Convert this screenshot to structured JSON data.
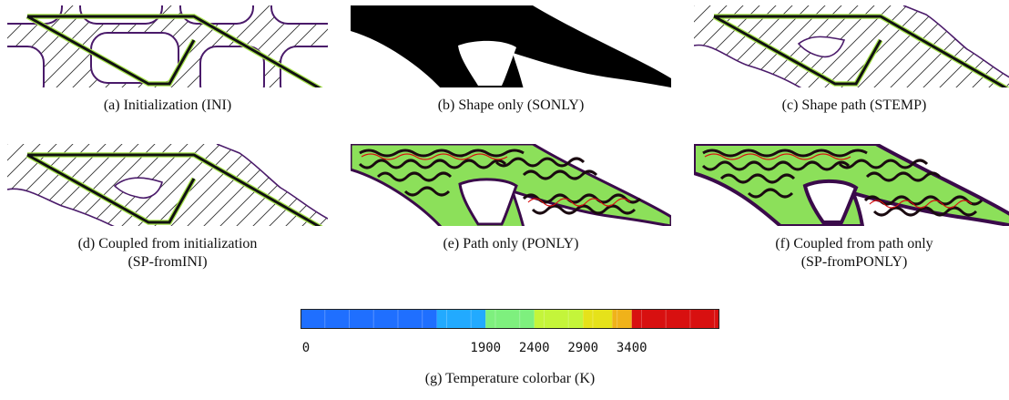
{
  "panels": [
    {
      "id": "a",
      "caption": "(a) Initialization (INI)"
    },
    {
      "id": "b",
      "caption": "(b) Shape only (SONLY)"
    },
    {
      "id": "c",
      "caption": "(c) Shape path (STEMP)"
    },
    {
      "id": "d",
      "caption_line1": "(d) Coupled from initialization",
      "caption_line2": "(SP-fromINI)"
    },
    {
      "id": "e",
      "caption": "(e) Path only (PONLY)"
    },
    {
      "id": "f",
      "caption_line1": "(f) Coupled from path only",
      "caption_line2": "(SP-fromPONLY)"
    }
  ],
  "colorbar": {
    "caption": "(g) Temperature colorbar (K)",
    "tick_labels": [
      "0",
      "1900",
      "2400",
      "2900",
      "3400"
    ],
    "tick_values": [
      0,
      1900,
      2400,
      2900,
      3400
    ],
    "min": 0,
    "max": 4300,
    "segments": [
      {
        "from": 0,
        "to": 1400,
        "color": "#1f6fff"
      },
      {
        "from": 1400,
        "to": 1900,
        "color": "#22aaff"
      },
      {
        "from": 1900,
        "to": 2400,
        "color": "#7ef07e"
      },
      {
        "from": 2400,
        "to": 2900,
        "color": "#c4f53a"
      },
      {
        "from": 2900,
        "to": 3200,
        "color": "#e6e21a"
      },
      {
        "from": 3200,
        "to": 3400,
        "color": "#f0b21a"
      },
      {
        "from": 3400,
        "to": 4300,
        "color": "#d81010"
      }
    ]
  },
  "colors": {
    "boundary": "#4a1a6a",
    "path": "#111111",
    "path_halo": "#a6e34a",
    "shape": "#000000",
    "hatch": "#333333"
  }
}
